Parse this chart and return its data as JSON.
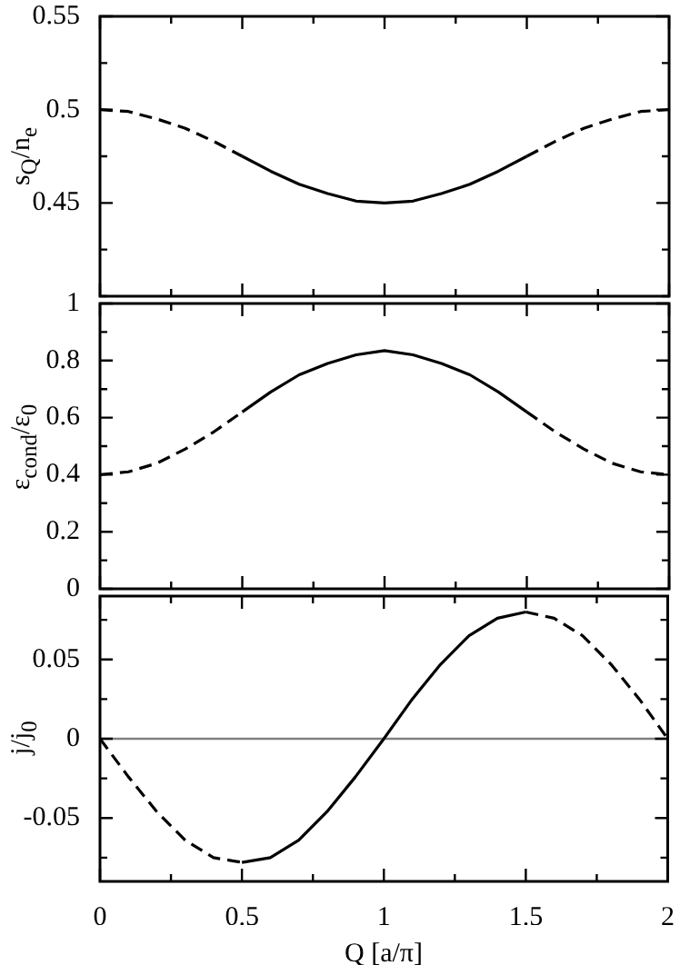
{
  "chart_data": [
    {
      "type": "line",
      "ylabel": "s$_{Q}$/n$_{e}$",
      "xlim": [
        0,
        2
      ],
      "xticks": [
        0,
        {
          "value": 0.25,
          "label": null
        },
        0.5,
        {
          "value": 0.75,
          "label": null
        },
        1,
        {
          "value": 1.25,
          "label": null
        },
        1.5,
        {
          "value": 1.75,
          "label": null
        },
        2
      ],
      "ylim": [
        0.4,
        0.55
      ],
      "yticks": [
        {
          "value": 0.4,
          "label": null
        },
        {
          "value": 0.425,
          "label": null
        },
        0.45,
        {
          "value": 0.475,
          "label": null
        },
        0.5,
        {
          "value": 0.525,
          "label": null
        },
        0.55
      ],
      "tick_labels": "y",
      "series": [
        {
          "color": "#000000",
          "line_style": "dashed",
          "x": [
            0,
            0.1,
            0.2,
            0.3,
            0.4,
            0.5
          ],
          "values": [
            0.5,
            0.499,
            0.495,
            0.49,
            0.483,
            0.475
          ]
        },
        {
          "color": "#000000",
          "line_style": "solid",
          "x": [
            0.5,
            0.6,
            0.7,
            0.8,
            0.9,
            1,
            1.1,
            1.2,
            1.3,
            1.4,
            1.5
          ],
          "values": [
            0.475,
            0.467,
            0.46,
            0.455,
            0.451,
            0.45,
            0.451,
            0.455,
            0.46,
            0.467,
            0.475
          ]
        },
        {
          "color": "#000000",
          "line_style": "dashed",
          "x": [
            1.5,
            1.6,
            1.7,
            1.8,
            1.9,
            2
          ],
          "values": [
            0.475,
            0.483,
            0.49,
            0.495,
            0.499,
            0.5
          ]
        }
      ]
    },
    {
      "type": "line",
      "ylabel": "ε$_{cond}$/ε$_{0}$",
      "xlim": [
        0,
        2
      ],
      "xticks": [
        0,
        {
          "value": 0.25,
          "label": null
        },
        0.5,
        {
          "value": 0.75,
          "label": null
        },
        1,
        {
          "value": 1.25,
          "label": null
        },
        1.5,
        {
          "value": 1.75,
          "label": null
        },
        2
      ],
      "ylim": [
        0,
        1
      ],
      "yticks": [
        0,
        {
          "value": 0.1,
          "label": null
        },
        0.2,
        {
          "value": 0.3,
          "label": null
        },
        0.4,
        {
          "value": 0.5,
          "label": null
        },
        0.6,
        {
          "value": 0.7,
          "label": null
        },
        0.8,
        {
          "value": 0.9,
          "label": null
        },
        1
      ],
      "tick_labels": "y",
      "series": [
        {
          "color": "#000000",
          "line_style": "dashed",
          "x": [
            0,
            0.1,
            0.2,
            0.3,
            0.4,
            0.5
          ],
          "values": [
            0.4,
            0.41,
            0.44,
            0.49,
            0.55,
            0.62
          ]
        },
        {
          "color": "#000000",
          "line_style": "solid",
          "x": [
            0.5,
            0.6,
            0.7,
            0.8,
            0.9,
            1,
            1.1,
            1.2,
            1.3,
            1.4,
            1.5
          ],
          "values": [
            0.62,
            0.69,
            0.75,
            0.79,
            0.82,
            0.835,
            0.82,
            0.79,
            0.75,
            0.69,
            0.62
          ]
        },
        {
          "color": "#000000",
          "line_style": "dashed",
          "x": [
            1.5,
            1.6,
            1.7,
            1.8,
            1.9,
            2
          ],
          "values": [
            0.62,
            0.55,
            0.49,
            0.44,
            0.41,
            0.4
          ]
        }
      ]
    },
    {
      "type": "line",
      "xlabel": "Q [a/π]",
      "ylabel": "j/j$_{0}$",
      "xlim": [
        0,
        2
      ],
      "xticks": [
        0,
        {
          "value": 0.25,
          "label": null
        },
        0.5,
        {
          "value": 0.75,
          "label": null
        },
        1,
        {
          "value": 1.25,
          "label": null
        },
        1.5,
        {
          "value": 1.75,
          "label": null
        },
        2
      ],
      "ylim": [
        -0.09,
        0.09
      ],
      "yticks": [
        {
          "value": -0.075,
          "label": null
        },
        -0.05,
        {
          "value": -0.025,
          "label": null
        },
        0,
        {
          "value": 0.025,
          "label": null
        },
        0.05,
        {
          "value": 0.075,
          "label": null
        }
      ],
      "ref_lines": [
        {
          "axis": "y",
          "value": 0,
          "color": "#808080"
        }
      ],
      "series": [
        {
          "color": "#000000",
          "line_style": "dashed",
          "x": [
            0,
            0.1,
            0.2,
            0.3,
            0.4,
            0.5
          ],
          "values": [
            0,
            -0.024,
            -0.046,
            -0.064,
            -0.075,
            -0.078
          ]
        },
        {
          "color": "#000000",
          "line_style": "solid",
          "x": [
            0.5,
            0.6,
            0.7,
            0.8,
            0.9,
            1,
            1.1,
            1.2,
            1.3,
            1.4,
            1.5
          ],
          "values": [
            -0.078,
            -0.075,
            -0.064,
            -0.046,
            -0.024,
            0,
            0.025,
            0.047,
            0.065,
            0.076,
            0.08
          ]
        },
        {
          "color": "#000000",
          "line_style": "dashed",
          "x": [
            1.5,
            1.6,
            1.7,
            1.8,
            1.9,
            2
          ],
          "values": [
            0.08,
            0.076,
            0.065,
            0.047,
            0.025,
            0
          ]
        }
      ]
    }
  ]
}
